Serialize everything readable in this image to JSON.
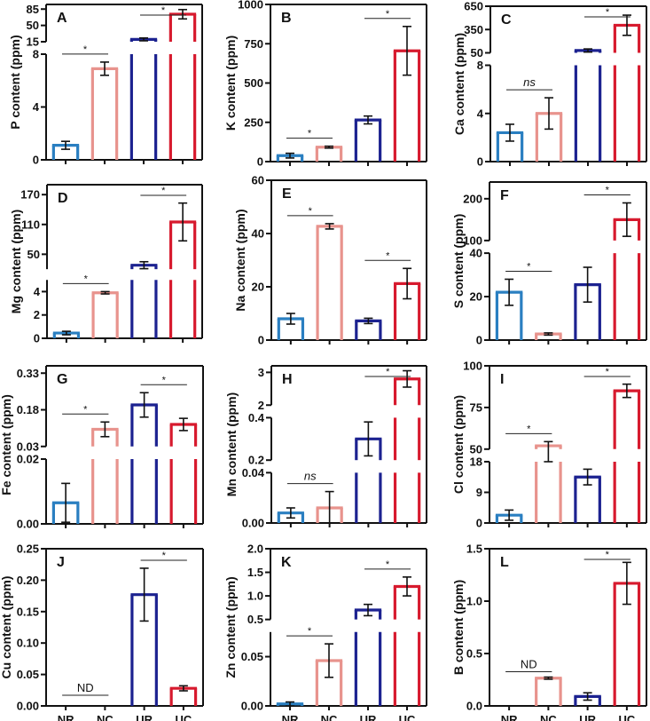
{
  "chart_data": {
    "type": "bar",
    "categories": [
      "NR",
      "NC",
      "UR",
      "UC"
    ],
    "colors": {
      "NR": "#2a7fc1",
      "NC": "#e8938d",
      "UR": "#1c2290",
      "UC": "#d71a2e"
    },
    "panels": [
      {
        "letter": "A",
        "ylabel": "P content (ppm)",
        "segments": [
          {
            "range": [
              0,
              8
            ],
            "ticks": [
              0,
              4,
              8
            ]
          },
          {
            "range": [
              15,
              95
            ],
            "ticks": [
              15,
              50,
              85
            ]
          }
        ],
        "values": [
          1.1,
          6.9,
          20,
          74
        ],
        "errors": [
          0.3,
          0.5,
          3,
          10
        ],
        "significance": [
          {
            "pair": [
              "NR",
              "NC"
            ],
            "label": "*"
          },
          {
            "pair": [
              "UR",
              "UC"
            ],
            "label": "*"
          }
        ],
        "show_categories": false
      },
      {
        "letter": "B",
        "ylabel": "K content (ppm)",
        "segments": [
          {
            "range": [
              0,
              1000
            ],
            "ticks": [
              0,
              250,
              500,
              750,
              1000
            ]
          }
        ],
        "values": [
          38,
          92,
          265,
          705
        ],
        "errors": [
          15,
          6,
          25,
          155
        ],
        "significance": [
          {
            "pair": [
              "NR",
              "NC"
            ],
            "label": "*"
          },
          {
            "pair": [
              "UR",
              "UC"
            ],
            "label": "*"
          }
        ],
        "show_categories": false
      },
      {
        "letter": "C",
        "ylabel": "Ca content (ppm)",
        "segments": [
          {
            "range": [
              0,
              8
            ],
            "ticks": [
              0,
              4,
              8
            ]
          },
          {
            "range": [
              50,
              650
            ],
            "ticks": [
              50,
              350,
              650
            ]
          }
        ],
        "values": [
          2.4,
          4.0,
          80,
          405
        ],
        "errors": [
          0.7,
          1.3,
          20,
          130
        ],
        "significance": [
          {
            "pair": [
              "NR",
              "NC"
            ],
            "label": "ns"
          },
          {
            "pair": [
              "UR",
              "UC"
            ],
            "label": "*"
          }
        ],
        "show_categories": false
      },
      {
        "letter": "D",
        "ylabel": "Mg content (ppm)",
        "segments": [
          {
            "range": [
              0,
              5
            ],
            "ticks": [
              0,
              2,
              4
            ]
          },
          {
            "range": [
              20,
              190
            ],
            "ticks": [
              50,
              110,
              170
            ]
          }
        ],
        "values": [
          0.45,
          3.9,
          28,
          115
        ],
        "errors": [
          0.15,
          0.1,
          7,
          38
        ],
        "significance": [
          {
            "pair": [
              "NR",
              "NC"
            ],
            "label": "*"
          },
          {
            "pair": [
              "UR",
              "UC"
            ],
            "label": "*"
          }
        ],
        "show_categories": false
      },
      {
        "letter": "E",
        "ylabel": "Na content (ppm)",
        "segments": [
          {
            "range": [
              0,
              60
            ],
            "ticks": [
              0,
              20,
              40,
              60
            ]
          }
        ],
        "values": [
          8.0,
          42.7,
          7.2,
          21.2
        ],
        "errors": [
          2.0,
          1.0,
          1.0,
          5.7
        ],
        "significance": [
          {
            "pair": [
              "NR",
              "NC"
            ],
            "label": "*"
          },
          {
            "pair": [
              "UR",
              "UC"
            ],
            "label": "*"
          }
        ],
        "show_categories": false
      },
      {
        "letter": "F",
        "ylabel": "S content (ppm)",
        "segments": [
          {
            "range": [
              0,
              40
            ],
            "ticks": [
              0,
              20,
              40
            ]
          },
          {
            "range": [
              100,
              240
            ],
            "ticks": [
              100,
              200
            ]
          }
        ],
        "values": [
          22,
          2.8,
          25.5,
          150
        ],
        "errors": [
          6,
          0.5,
          8,
          40
        ],
        "significance": [
          {
            "pair": [
              "NR",
              "NC"
            ],
            "label": "*"
          },
          {
            "pair": [
              "UR",
              "UC"
            ],
            "label": "*"
          }
        ],
        "show_categories": false
      },
      {
        "letter": "G",
        "ylabel": "Fe content (ppm)",
        "segments": [
          {
            "range": [
              0,
              0.02
            ],
            "ticks": [
              0.0,
              0.02
            ]
          },
          {
            "range": [
              0.03,
              0.36
            ],
            "ticks": [
              0.03,
              0.18,
              0.33
            ]
          }
        ],
        "values": [
          0.0065,
          0.1,
          0.2,
          0.12
        ],
        "errors": [
          0.006,
          0.03,
          0.05,
          0.025
        ],
        "tick_decimals": 2,
        "significance": [
          {
            "pair": [
              "NR",
              "NC"
            ],
            "label": "*"
          },
          {
            "pair": [
              "UR",
              "UC"
            ],
            "label": "*"
          }
        ],
        "show_categories": false
      },
      {
        "letter": "H",
        "ylabel": "Mn content (ppm)",
        "segments": [
          {
            "range": [
              0,
              0.04
            ],
            "ticks": [
              0.0,
              0.04
            ]
          },
          {
            "range": [
              0.2,
              0.4
            ],
            "ticks": [
              0.2,
              0.4
            ]
          },
          {
            "range": [
              2,
              3.2
            ],
            "ticks": [
              2,
              3
            ]
          }
        ],
        "tick_labels": [
          "0.00",
          "0.04",
          "0.2",
          "0.4",
          "2",
          "3"
        ],
        "values": [
          0.008,
          0.012,
          0.3,
          2.8
        ],
        "errors": [
          0.004,
          0.013,
          0.08,
          0.25
        ],
        "significance": [
          {
            "pair": [
              "NR",
              "NC"
            ],
            "label": "ns"
          },
          {
            "pair": [
              "UR",
              "UC"
            ],
            "label": "*"
          }
        ],
        "show_categories": false
      },
      {
        "letter": "I",
        "ylabel": "Cl content (ppm)",
        "segments": [
          {
            "range": [
              0,
              18
            ],
            "ticks": [
              0,
              9,
              18
            ]
          },
          {
            "range": [
              50,
              100
            ],
            "ticks": [
              50,
              75,
              100
            ]
          }
        ],
        "values": [
          2.3,
          52,
          13.5,
          85
        ],
        "errors": [
          1.5,
          2.5,
          2.3,
          4
        ],
        "significance": [
          {
            "pair": [
              "NR",
              "NC"
            ],
            "label": "*"
          },
          {
            "pair": [
              "UR",
              "UC"
            ],
            "label": "*"
          }
        ],
        "show_categories": false
      },
      {
        "letter": "J",
        "ylabel": "Cu content (ppm)",
        "segments": [
          {
            "range": [
              0,
              0.25
            ],
            "ticks": [
              0.0,
              0.05,
              0.1,
              0.15,
              0.2,
              0.25
            ]
          }
        ],
        "tick_decimals": 2,
        "values": [
          0,
          0,
          0.177,
          0.028
        ],
        "errors": [
          0,
          0,
          0.042,
          0.004
        ],
        "significance": [
          {
            "pair": [
              "NR",
              "NC"
            ],
            "label": "ND"
          },
          {
            "pair": [
              "UR",
              "UC"
            ],
            "label": "*"
          }
        ],
        "show_categories": true
      },
      {
        "letter": "K",
        "ylabel": "Zn content (ppm)",
        "segments": [
          {
            "range": [
              0,
              0.075
            ],
            "ticks": [
              0.0,
              0.05
            ]
          },
          {
            "range": [
              0.5,
              2.0
            ],
            "ticks": [
              0.5,
              1.0,
              1.5,
              2.0
            ]
          }
        ],
        "tick_labels": [
          "0.00",
          "0.05",
          "0.5",
          "1.0",
          "1.5",
          "2.0"
        ],
        "values": [
          0.002,
          0.046,
          0.7,
          1.2
        ],
        "errors": [
          0.002,
          0.017,
          0.12,
          0.2
        ],
        "significance": [
          {
            "pair": [
              "NR",
              "NC"
            ],
            "label": "*"
          },
          {
            "pair": [
              "UR",
              "UC"
            ],
            "label": "*"
          }
        ],
        "show_categories": true
      },
      {
        "letter": "L",
        "ylabel": "B content (ppm)",
        "segments": [
          {
            "range": [
              0,
              1.5
            ],
            "ticks": [
              0.0,
              0.5,
              1.0,
              1.5
            ]
          }
        ],
        "tick_decimals": 1,
        "values": [
          0,
          0.265,
          0.09,
          1.17
        ],
        "errors": [
          0,
          0.01,
          0.035,
          0.2
        ],
        "significance": [
          {
            "pair": [
              "NR",
              "NC"
            ],
            "label": "ND"
          },
          {
            "pair": [
              "UR",
              "UC"
            ],
            "label": "*"
          }
        ],
        "show_categories": true
      }
    ]
  }
}
